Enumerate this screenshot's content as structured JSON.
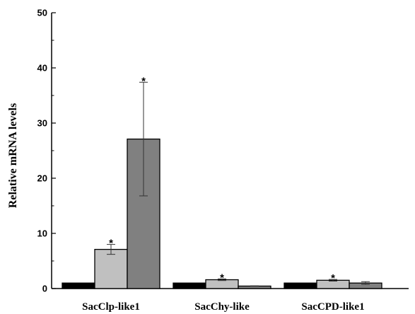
{
  "chart_data": {
    "type": "bar",
    "xlabel": "",
    "ylabel": "Relative mRNA levels",
    "ylim": [
      0,
      50
    ],
    "yticks": [
      0,
      10,
      20,
      30,
      40,
      50
    ],
    "categories": [
      "SacClp-like1",
      "SacChy-like",
      "SacCPD-like1"
    ],
    "series": [
      {
        "color": "#000000",
        "values": [
          1.0,
          1.0,
          1.0
        ],
        "errors": [
          0,
          0,
          0
        ],
        "significant": [
          false,
          false,
          false
        ]
      },
      {
        "color": "#c0c0c0",
        "values": [
          7.1,
          1.6,
          1.5
        ],
        "errors": [
          0.9,
          0.15,
          0.15
        ],
        "significant": [
          true,
          true,
          true
        ]
      },
      {
        "color": "#808080",
        "values": [
          27.1,
          0.45,
          1.0
        ],
        "errors": [
          10.3,
          0.05,
          0.25
        ],
        "significant": [
          true,
          false,
          false
        ]
      }
    ],
    "significance_marker": "*",
    "grid": false,
    "legend": "none"
  }
}
